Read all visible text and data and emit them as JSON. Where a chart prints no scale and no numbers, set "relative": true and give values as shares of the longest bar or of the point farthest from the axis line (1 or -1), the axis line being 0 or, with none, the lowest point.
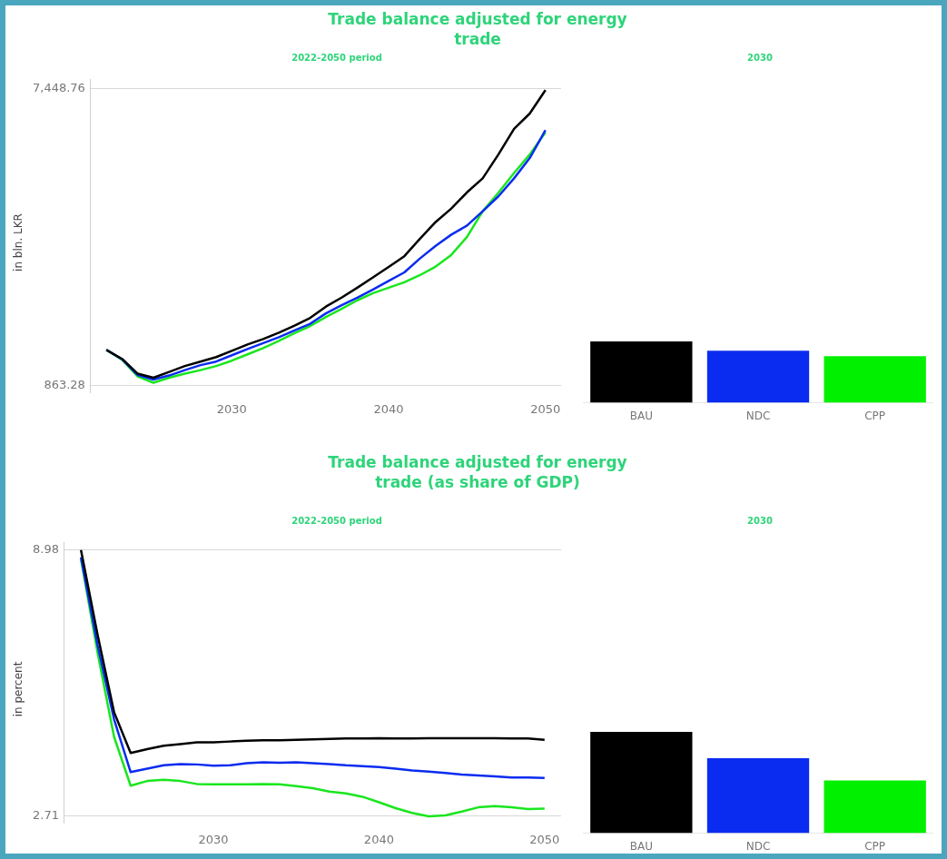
{
  "chart_data": [
    {
      "type": "line",
      "title": "Trade balance adjusted for energy trade",
      "subtitle": "2022-2050 period",
      "ylabel": "in bln. LKR",
      "x": [
        2022,
        2023,
        2024,
        2025,
        2026,
        2027,
        2028,
        2029,
        2030,
        2031,
        2032,
        2033,
        2034,
        2035,
        2036,
        2037,
        2038,
        2039,
        2040,
        2041,
        2042,
        2043,
        2044,
        2045,
        2046,
        2047,
        2048,
        2049,
        2050
      ],
      "xlim": [
        2021,
        2051
      ],
      "xticks": [
        2030,
        2040,
        2050
      ],
      "ylim": [
        700,
        7650
      ],
      "yticks": [
        {
          "value": 863.28,
          "label": "863.28"
        },
        {
          "value": 7448.76,
          "label": "7,448.76"
        }
      ],
      "grid": "y",
      "series": [
        {
          "color": "#000000",
          "values": [
            1650,
            1450,
            1120,
            1030,
            1160,
            1290,
            1390,
            1490,
            1630,
            1770,
            1890,
            2030,
            2190,
            2360,
            2610,
            2810,
            3030,
            3260,
            3490,
            3730,
            4120,
            4490,
            4790,
            5150,
            5460,
            5990,
            6560,
            6900,
            7420
          ]
        },
        {
          "color": "#0a2cf0",
          "values": [
            1650,
            1440,
            1090,
            990,
            1080,
            1200,
            1310,
            1390,
            1530,
            1670,
            1800,
            1930,
            2080,
            2230,
            2460,
            2640,
            2810,
            2990,
            3180,
            3370,
            3680,
            3960,
            4210,
            4410,
            4730,
            5060,
            5460,
            5910,
            6530
          ]
        },
        {
          "color": "#19e61e",
          "values": [
            1650,
            1430,
            1060,
            920,
            1030,
            1120,
            1200,
            1290,
            1410,
            1550,
            1690,
            1850,
            2020,
            2180,
            2380,
            2560,
            2750,
            2910,
            3030,
            3150,
            3310,
            3500,
            3760,
            4160,
            4730,
            5140,
            5580,
            5990,
            6480
          ]
        }
      ]
    },
    {
      "type": "bar",
      "subtitle": "2030",
      "relative": true,
      "categories": [
        "BAU",
        "NDC",
        "CPP"
      ],
      "values": [
        1,
        0.85,
        0.76
      ],
      "colors": [
        "#000000",
        "#0a2cf0",
        "#00f000"
      ]
    },
    {
      "type": "line",
      "title": "Trade balance adjusted for energy trade (as share of GDP)",
      "subtitle": "2022-2050 period",
      "ylabel": "in percent",
      "x": [
        2022,
        2023,
        2024,
        2025,
        2026,
        2027,
        2028,
        2029,
        2030,
        2031,
        2032,
        2033,
        2034,
        2035,
        2036,
        2037,
        2038,
        2039,
        2040,
        2041,
        2042,
        2043,
        2044,
        2045,
        2046,
        2047,
        2048,
        2049,
        2050
      ],
      "xlim": [
        2021,
        2051
      ],
      "xticks": [
        2030,
        2040,
        2050
      ],
      "ylim": [
        2.55,
        9.15
      ],
      "yticks": [
        2.71,
        8.98
      ],
      "grid": "y",
      "series": [
        {
          "color": "#000000",
          "values": [
            8.98,
            6.99,
            5.16,
            4.2,
            4.29,
            4.37,
            4.41,
            4.45,
            4.45,
            4.47,
            4.49,
            4.5,
            4.5,
            4.51,
            4.52,
            4.53,
            4.54,
            4.54,
            4.55,
            4.54,
            4.54,
            4.55,
            4.55,
            4.55,
            4.55,
            4.55,
            4.54,
            4.54,
            4.51
          ]
        },
        {
          "color": "#0a2cf0",
          "values": [
            8.81,
            6.74,
            4.99,
            3.75,
            3.83,
            3.91,
            3.94,
            3.93,
            3.9,
            3.91,
            3.96,
            3.98,
            3.97,
            3.98,
            3.96,
            3.94,
            3.91,
            3.89,
            3.87,
            3.83,
            3.79,
            3.76,
            3.73,
            3.69,
            3.67,
            3.65,
            3.62,
            3.62,
            3.61
          ]
        },
        {
          "color": "#19e61e",
          "values": [
            8.77,
            6.57,
            4.58,
            3.43,
            3.54,
            3.57,
            3.54,
            3.47,
            3.46,
            3.46,
            3.46,
            3.47,
            3.46,
            3.42,
            3.37,
            3.29,
            3.25,
            3.17,
            3.04,
            2.9,
            2.79,
            2.71,
            2.73,
            2.82,
            2.92,
            2.95,
            2.92,
            2.88,
            2.89
          ]
        }
      ]
    },
    {
      "type": "bar",
      "subtitle": "2030",
      "relative": true,
      "categories": [
        "BAU",
        "NDC",
        "CPP"
      ],
      "values": [
        1,
        0.74,
        0.52
      ],
      "colors": [
        "#000000",
        "#0a2cf0",
        "#00f000"
      ]
    }
  ]
}
